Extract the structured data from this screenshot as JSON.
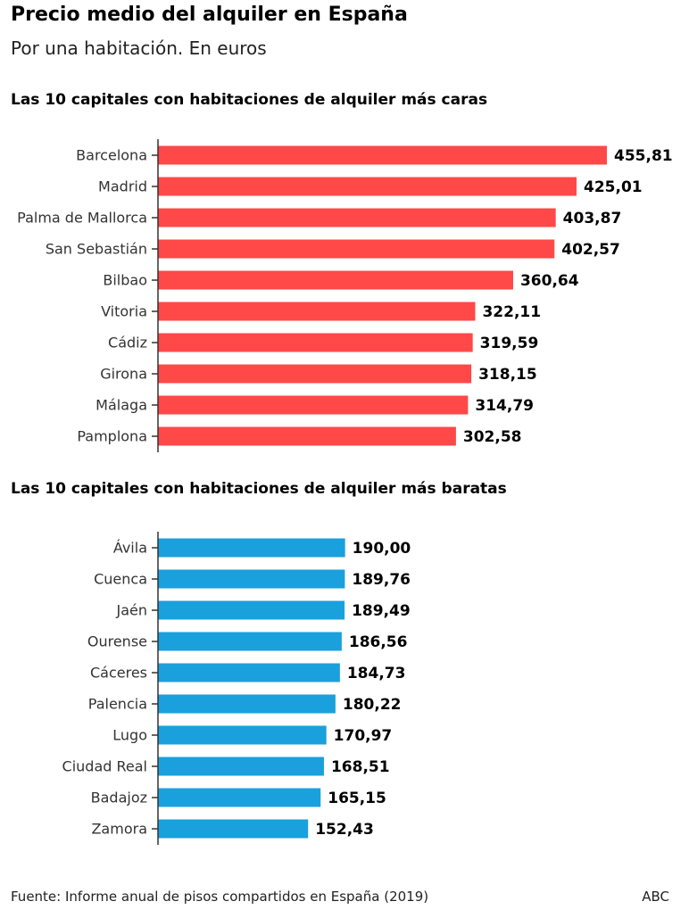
{
  "title": "Precio medio del alquiler en España",
  "subtitle": "Por una habitación. En euros",
  "footer": {
    "source": "Fuente: Informe anual de pisos compartidos en España (2019)",
    "brand": "ABC"
  },
  "colors": {
    "expensive": "#ff4848",
    "cheap": "#1aa0dc",
    "axis": "#333333"
  },
  "chart_data": [
    {
      "type": "bar",
      "orientation": "horizontal",
      "title": "Las 10 capitales con habitaciones de alquiler más caras",
      "categories": [
        "Barcelona",
        "Madrid",
        "Palma de Mallorca",
        "San Sebastián",
        "Bilbao",
        "Vitoria",
        "Cádiz",
        "Girona",
        "Málaga",
        "Pamplona"
      ],
      "values": [
        455.81,
        425.01,
        403.87,
        402.57,
        360.64,
        322.11,
        319.59,
        318.15,
        314.79,
        302.58
      ],
      "value_labels": [
        "455,81",
        "425,01",
        "403,87",
        "402,57",
        "360,64",
        "322,11",
        "319,59",
        "318,15",
        "314,79",
        "302,58"
      ],
      "xlim": [
        0,
        455.81
      ]
    },
    {
      "type": "bar",
      "orientation": "horizontal",
      "title": "Las 10 capitales con habitaciones de alquiler más baratas",
      "categories": [
        "Ávila",
        "Cuenca",
        "Jaén",
        "Ourense",
        "Cáceres",
        "Palencia",
        "Lugo",
        "Ciudad Real",
        "Badajoz",
        "Zamora"
      ],
      "values": [
        190.0,
        189.76,
        189.49,
        186.56,
        184.73,
        180.22,
        170.97,
        168.51,
        165.15,
        152.43
      ],
      "value_labels": [
        "190,00",
        "189,76",
        "189,49",
        "186,56",
        "184,73",
        "180,22",
        "170,97",
        "168,51",
        "165,15",
        "152,43"
      ],
      "xlim": [
        0,
        455.81
      ]
    }
  ]
}
